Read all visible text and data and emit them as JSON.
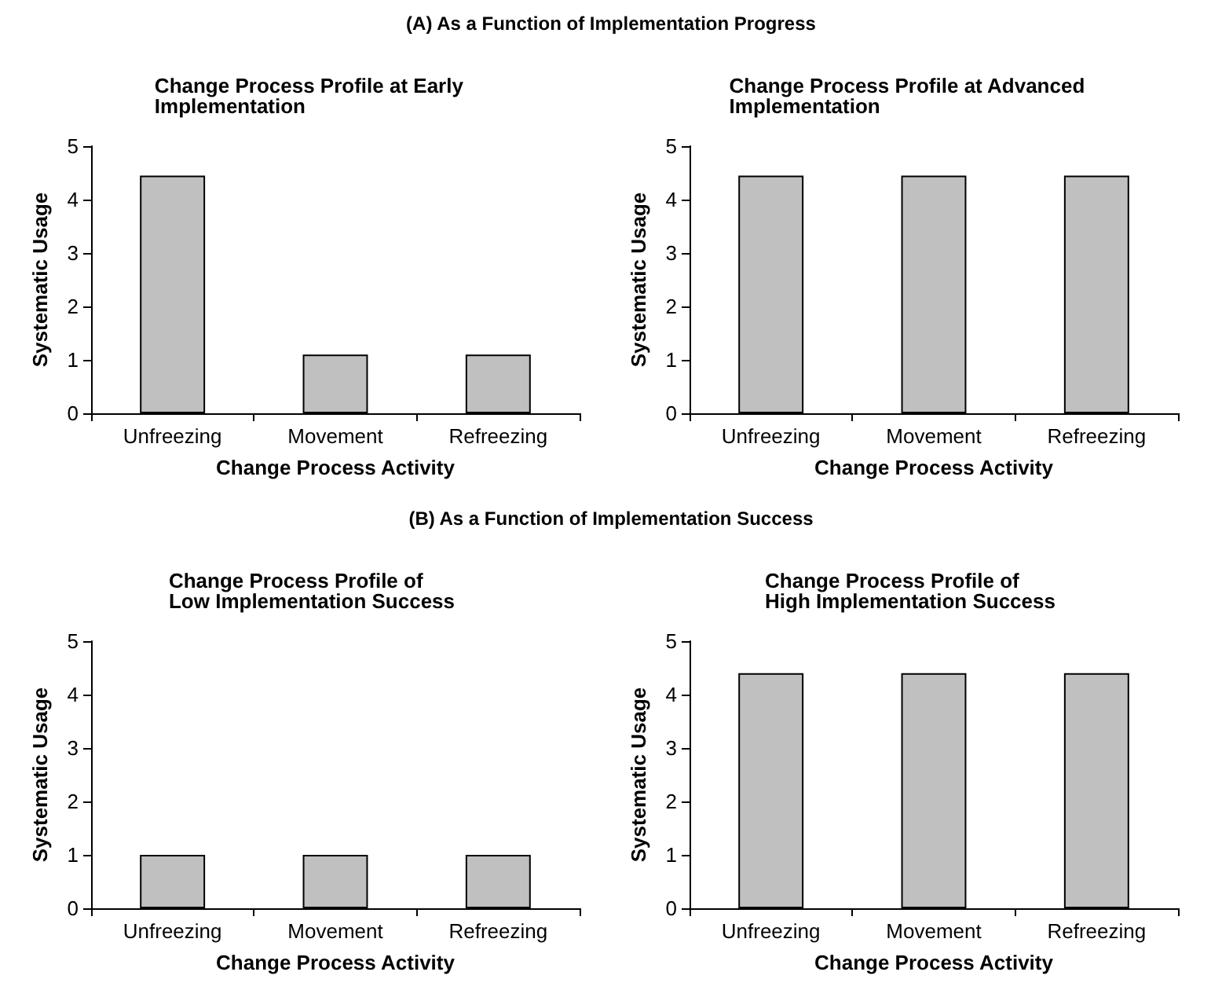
{
  "chart_data": [
    {
      "type": "bar",
      "title": "Change Process Profile at Early Implementation",
      "annotations": [
        "(A) As a Function of Implementation Progress"
      ],
      "xlabel": "Change Process Activity",
      "ylabel": "Systematic Usage",
      "categories": [
        "Unfreezing",
        "Movement",
        "Refreezing"
      ],
      "values": [
        4.45,
        1.1,
        1.1
      ],
      "color": "#c0c0c0",
      "ylim": [
        0,
        5
      ],
      "yticks": [
        0,
        1,
        2,
        3,
        4,
        5
      ],
      "grid": false
    },
    {
      "type": "bar",
      "title": "Change Process Profile at Advanced Implementation",
      "xlabel": "Change Process Activity",
      "ylabel": "Systematic Usage",
      "categories": [
        "Unfreezing",
        "Movement",
        "Refreezing"
      ],
      "values": [
        4.45,
        4.45,
        4.45
      ],
      "color": "#c0c0c0",
      "ylim": [
        0,
        5
      ],
      "yticks": [
        0,
        1,
        2,
        3,
        4,
        5
      ],
      "grid": false
    },
    {
      "type": "bar",
      "title": "Change Process Profile of\nLow Implementation Success",
      "annotations": [
        "(B) As a Function of Implementation Success"
      ],
      "xlabel": "Change Process Activity",
      "ylabel": "Systematic Usage",
      "categories": [
        "Unfreezing",
        "Movement",
        "Refreezing"
      ],
      "values": [
        1,
        1,
        1
      ],
      "color": "#c0c0c0",
      "ylim": [
        0,
        5
      ],
      "yticks": [
        0,
        1,
        2,
        3,
        4,
        5
      ],
      "grid": false
    },
    {
      "type": "bar",
      "title": "Change Process Profile of\nHigh Implementation Success",
      "xlabel": "Change Process Activity",
      "ylabel": "Systematic Usage",
      "categories": [
        "Unfreezing",
        "Movement",
        "Refreezing"
      ],
      "values": [
        4.4,
        4.4,
        4.4
      ],
      "color": "#c0c0c0",
      "ylim": [
        0,
        5
      ],
      "yticks": [
        0,
        1,
        2,
        3,
        4,
        5
      ],
      "grid": false
    }
  ]
}
